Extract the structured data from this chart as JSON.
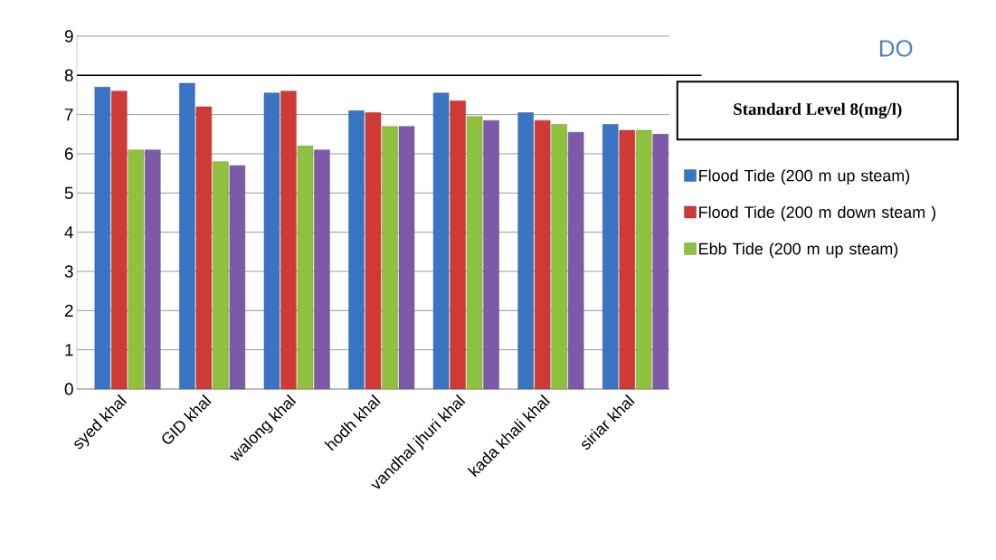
{
  "chart_data": {
    "type": "bar",
    "title": "DO",
    "categories": [
      "syed khal",
      "GID khal",
      "walong khal",
      "hodh khal",
      "vandhal jhuri khal",
      "kada khali khal",
      "siriar khal"
    ],
    "series": [
      {
        "name": "Flood Tide (200 m up steam)",
        "color": "#3a75c4",
        "values": [
          7.7,
          7.8,
          7.55,
          7.1,
          7.55,
          7.05,
          6.75
        ]
      },
      {
        "name": "Flood  Tide  (200 m down steam )",
        "color": "#d03a36",
        "values": [
          7.6,
          7.2,
          7.6,
          7.05,
          7.35,
          6.85,
          6.6
        ]
      },
      {
        "name": "Ebb Tide (200 m up steam)",
        "color": "#8fc03e",
        "values": [
          6.1,
          5.8,
          6.2,
          6.7,
          6.95,
          6.75,
          6.6
        ]
      },
      {
        "color": "#7d5aa8",
        "values": [
          6.1,
          5.7,
          6.1,
          6.7,
          6.85,
          6.55,
          6.5
        ]
      }
    ],
    "ylim": [
      0,
      9
    ],
    "yticks": [
      0,
      1,
      2,
      3,
      4,
      5,
      6,
      7,
      8,
      9
    ],
    "grid": "y",
    "legend": "right",
    "ref_lines": [
      {
        "axis": "y",
        "value": 8,
        "label": "Standard Level 8(mg/l)",
        "color": "#000000"
      }
    ]
  }
}
